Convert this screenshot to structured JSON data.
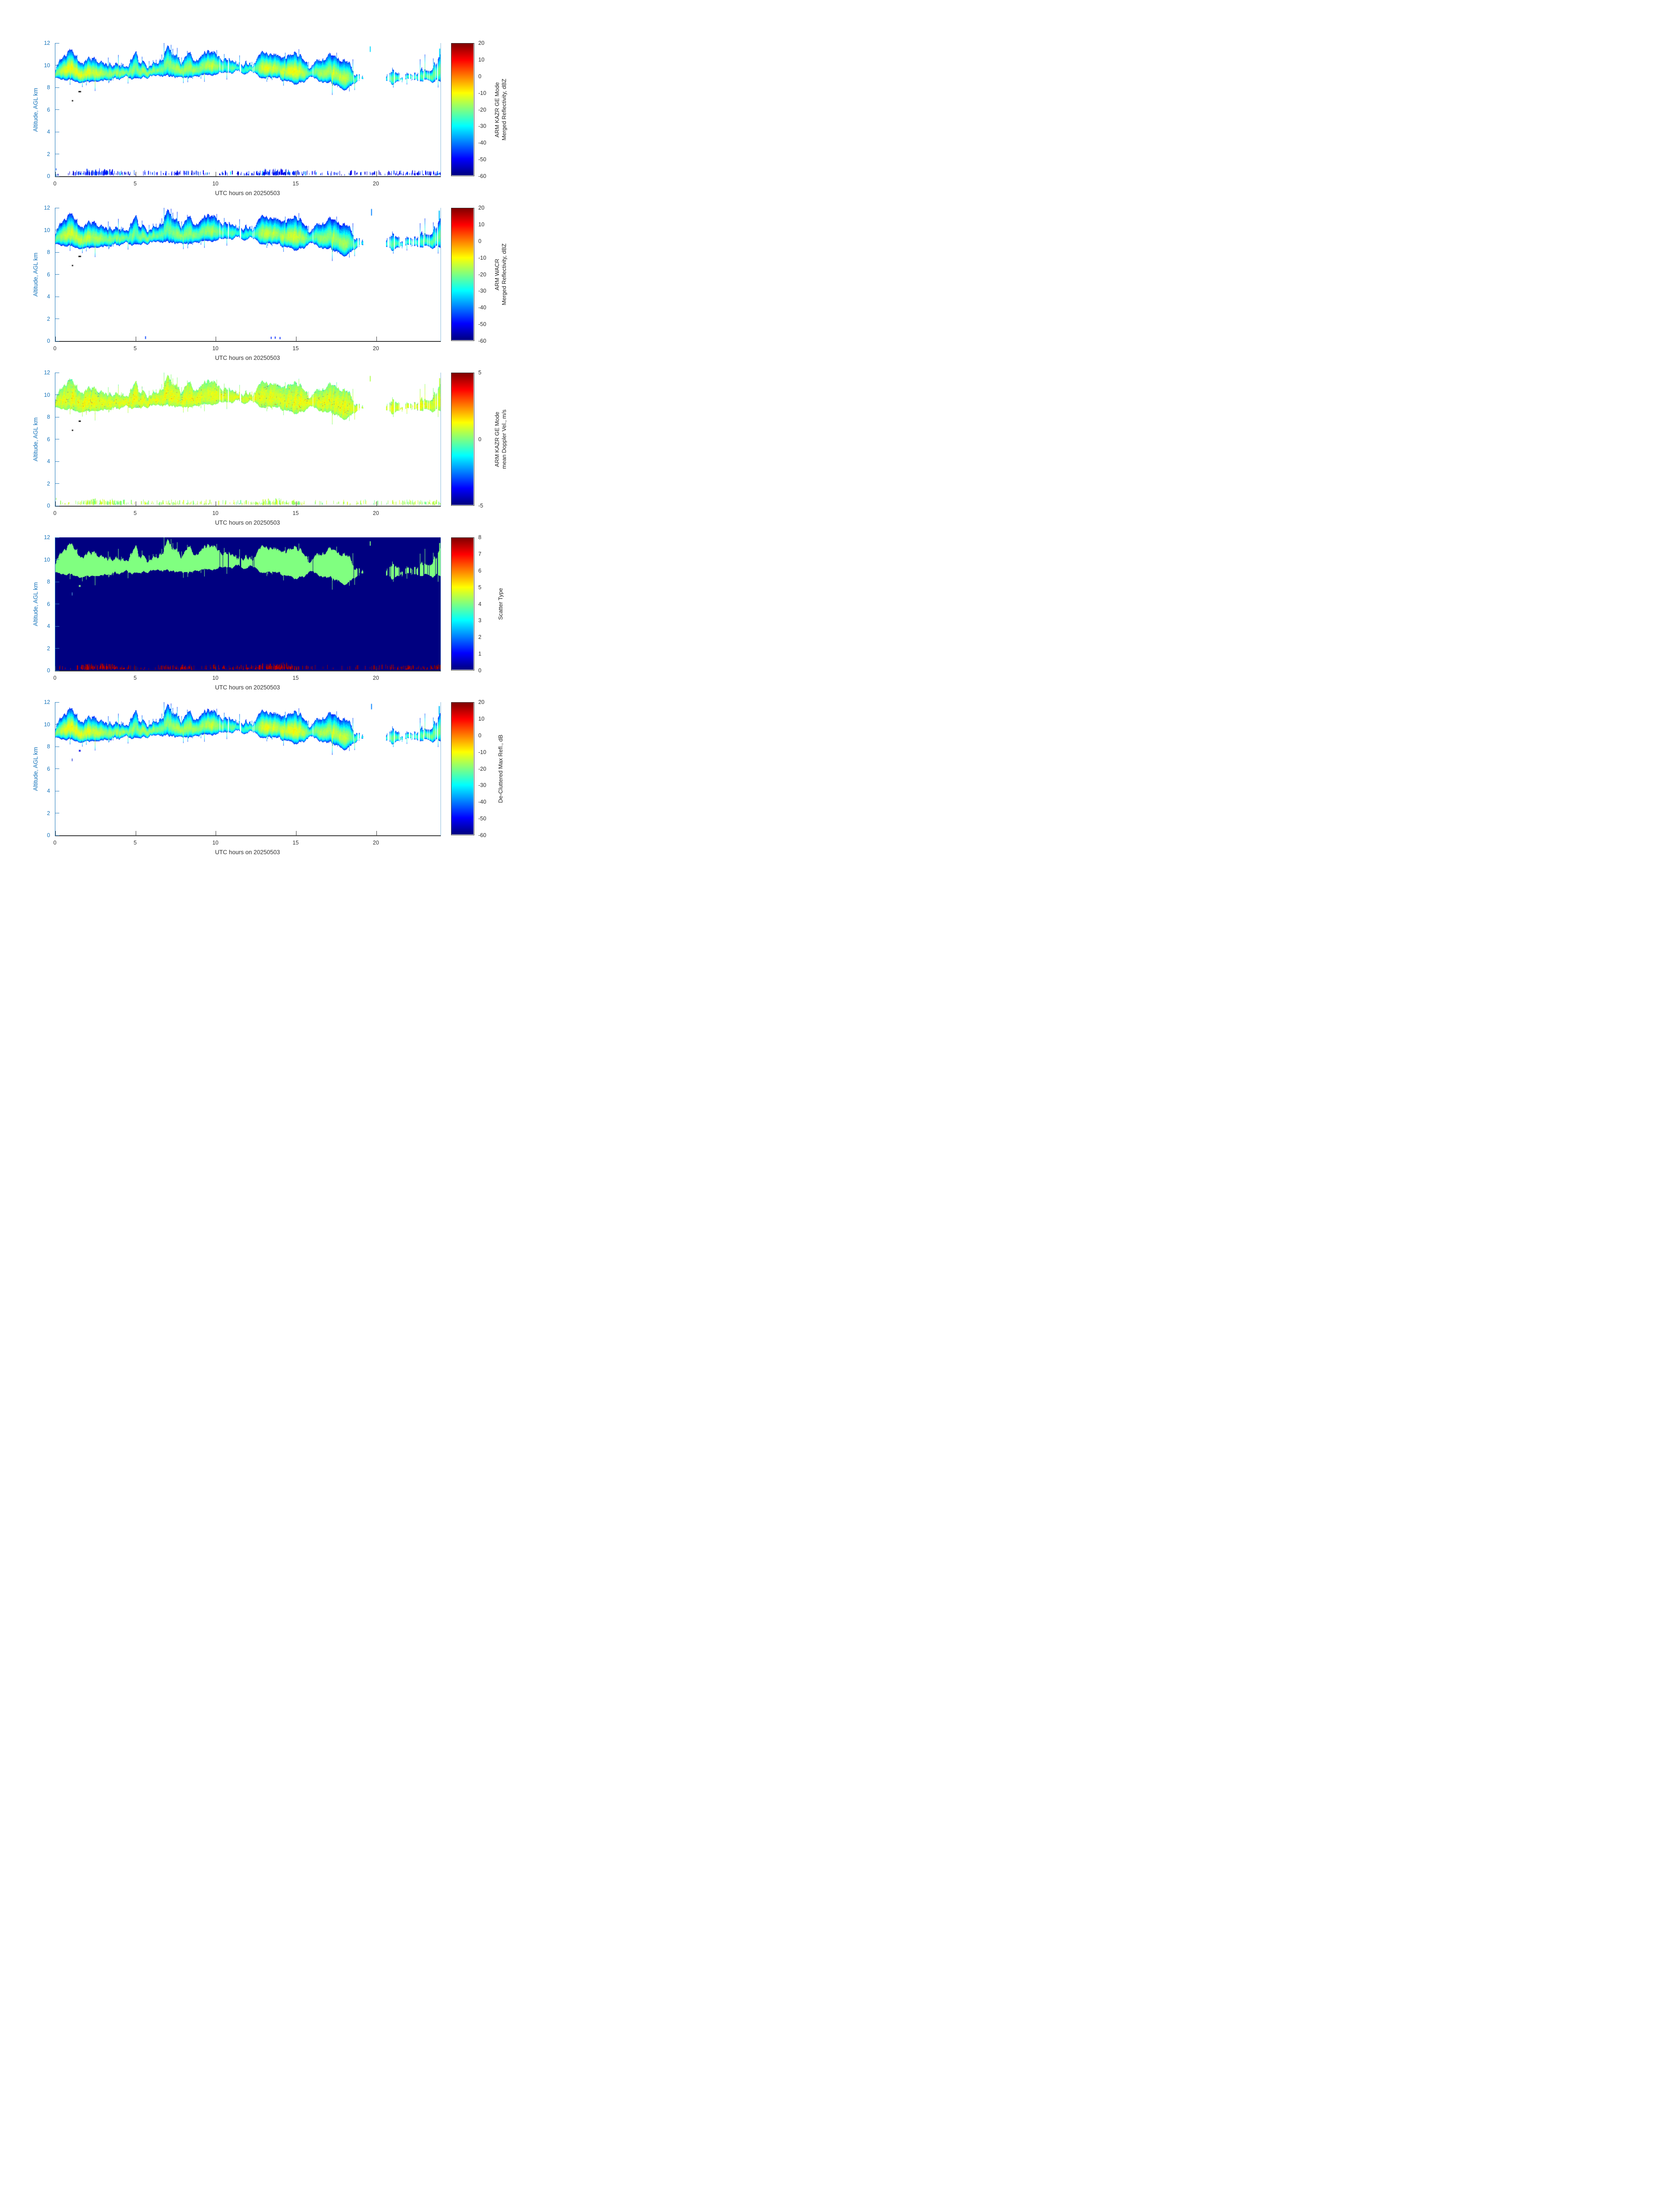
{
  "figure": {
    "xlabel": "UTC hours on 20250503",
    "ylabel": "Altitude, AGL km",
    "axis_color_y": "#1674bb",
    "axis_color_x": "#3a3a3a"
  },
  "chart_data": {
    "type": "heatmap",
    "x": {
      "label": "UTC hours on 20250503",
      "range": [
        0,
        24
      ],
      "ticks": [
        0,
        5,
        10,
        15,
        20
      ]
    },
    "y": {
      "label": "Altitude, AGL km",
      "range": [
        0,
        12
      ],
      "ticks": [
        0,
        2,
        4,
        6,
        8,
        10,
        12
      ]
    },
    "colormap": "jet",
    "cloud_band": {
      "description": "High cloud layer observed by vertically pointing radars; base/top in km AGL vs UTC hour, density ~ reflectivity core strength (0-1). Gaps at 19.3-20.5 and 21.7-21.9 h.",
      "t": [
        0,
        0.3,
        0.6,
        0.9,
        1.2,
        1.5,
        1.8,
        2.1,
        2.4,
        2.7,
        3.0,
        3.3,
        3.6,
        3.9,
        4.2,
        4.5,
        4.8,
        5.0,
        5.2,
        5.5,
        5.8,
        6.1,
        6.4,
        6.7,
        7.0,
        7.2,
        7.5,
        7.8,
        8.1,
        8.4,
        8.7,
        9.0,
        9.3,
        9.6,
        9.9,
        10.2,
        10.5,
        10.8,
        11.1,
        11.4,
        11.7,
        12.0,
        12.3,
        12.6,
        12.9,
        13.2,
        13.5,
        13.8,
        14.1,
        14.4,
        14.7,
        15.0,
        15.3,
        15.6,
        15.9,
        16.2,
        16.5,
        16.8,
        17.1,
        17.4,
        17.7,
        18.0,
        18.3,
        18.6,
        18.9,
        19.1,
        19.3,
        20.5,
        20.8,
        21.1,
        21.4,
        21.7,
        21.9,
        22.2,
        22.5,
        22.8,
        23.1,
        23.4,
        23.7,
        24.0
      ],
      "base_km": [
        8.9,
        8.7,
        8.6,
        8.6,
        8.6,
        8.5,
        8.5,
        8.4,
        8.5,
        8.4,
        8.5,
        8.6,
        8.8,
        8.8,
        8.8,
        8.9,
        8.8,
        8.8,
        8.8,
        8.9,
        8.9,
        9.0,
        8.9,
        8.9,
        9.0,
        9.0,
        9.0,
        9.0,
        9.0,
        9.0,
        9.1,
        9.0,
        9.0,
        9.0,
        9.1,
        9.2,
        9.2,
        9.3,
        9.2,
        9.3,
        9.2,
        9.2,
        9.3,
        9.0,
        8.9,
        8.8,
        8.8,
        8.8,
        8.7,
        8.5,
        8.4,
        8.3,
        8.4,
        8.6,
        8.8,
        8.7,
        8.6,
        8.5,
        8.4,
        8.2,
        8.0,
        7.9,
        8.1,
        8.3,
        8.6,
        8.7,
        8.8,
        8.5,
        8.4,
        8.3,
        8.3,
        8.6,
        8.7,
        8.6,
        8.6,
        8.5,
        8.6,
        8.5,
        8.5,
        8.6
      ],
      "top_km": [
        10.0,
        10.3,
        10.9,
        11.2,
        11.0,
        10.4,
        10.2,
        10.6,
        10.7,
        10.3,
        10.4,
        10.2,
        10.0,
        10.1,
        10.0,
        9.9,
        10.6,
        11.6,
        10.3,
        10.2,
        10.0,
        10.4,
        10.3,
        10.6,
        11.8,
        11.0,
        10.7,
        10.4,
        10.8,
        11.0,
        10.6,
        10.5,
        11.2,
        11.3,
        11.3,
        10.9,
        10.7,
        10.9,
        10.6,
        10.3,
        10.2,
        10.4,
        10.3,
        10.8,
        11.2,
        11.1,
        10.8,
        11.0,
        10.9,
        10.8,
        11.0,
        11.1,
        11.0,
        10.3,
        9.9,
        10.2,
        10.4,
        10.5,
        10.9,
        11.0,
        10.8,
        10.5,
        10.0,
        9.4,
        9.1,
        9.0,
        8.9,
        9.0,
        9.3,
        9.6,
        9.5,
        8.9,
        9.4,
        9.3,
        9.5,
        9.6,
        9.5,
        9.7,
        10.0,
        11.3
      ],
      "density": [
        0.5,
        0.7,
        0.85,
        0.9,
        0.85,
        0.8,
        0.75,
        0.8,
        0.8,
        0.65,
        0.7,
        0.6,
        0.6,
        0.65,
        0.6,
        0.5,
        0.6,
        0.45,
        0.6,
        0.7,
        0.6,
        0.55,
        0.5,
        0.55,
        0.5,
        0.6,
        0.65,
        0.6,
        0.6,
        0.65,
        0.6,
        0.55,
        0.7,
        0.75,
        0.7,
        0.5,
        0.4,
        0.4,
        0.4,
        0.3,
        0.35,
        0.35,
        0.3,
        0.5,
        0.75,
        0.8,
        0.75,
        0.7,
        0.7,
        0.75,
        0.8,
        0.9,
        0.8,
        0.6,
        0.4,
        0.5,
        0.6,
        0.65,
        0.7,
        0.75,
        0.75,
        0.7,
        0.6,
        0.4,
        0.2,
        0.1,
        0,
        0,
        0.35,
        0.45,
        0.4,
        0,
        0.3,
        0.35,
        0.35,
        0.4,
        0.4,
        0.45,
        0.4,
        0.5
      ]
    },
    "surface_clutter": {
      "description": "Near-surface clutter/insect returns, 0.05-0.6 km AGL; relative density vs UTC hour.",
      "alt_range_km": [
        0.05,
        0.6
      ],
      "t": [
        0,
        0.8,
        1.3,
        1.6,
        2.2,
        3.0,
        3.6,
        4.2,
        4.6,
        5.2,
        5.8,
        6.4,
        7.0,
        7.6,
        8.0,
        8.6,
        9.2,
        9.8,
        10.4,
        11.0,
        11.6,
        12.1,
        12.6,
        13.2,
        13.8,
        14.4,
        15.0,
        15.4,
        15.8,
        16.4,
        17.0,
        17.6,
        18.2,
        18.7,
        19.2,
        19.8,
        20.4,
        21.0,
        21.6,
        22.2,
        22.8,
        23.4,
        24.0
      ],
      "density": [
        0.1,
        0.12,
        0.45,
        0.75,
        0.9,
        0.85,
        0.8,
        0.55,
        0.35,
        0.3,
        0.25,
        0.3,
        0.45,
        0.55,
        0.5,
        0.45,
        0.4,
        0.3,
        0.25,
        0.35,
        0.4,
        0.55,
        0.75,
        0.85,
        0.95,
        0.85,
        0.6,
        0.4,
        0.25,
        0.2,
        0.22,
        0.2,
        0.25,
        0.35,
        0.3,
        0.28,
        0.32,
        0.45,
        0.55,
        0.6,
        0.55,
        0.6,
        0.55
      ]
    },
    "panels": [
      {
        "name": "kazr-ge-merged-reflectivity",
        "title_line1": "ARM KAZR GE Mode",
        "title_line2": "Merged Reflectivity, dBZ",
        "kind": "reflectivity",
        "cmin": -60,
        "cmax": 20,
        "cticks": [
          20,
          10,
          0,
          -10,
          -20,
          -30,
          -40,
          -50,
          -60
        ],
        "clutter": true,
        "widen_base": 0,
        "widen_top": 0,
        "seed": 101,
        "dots": [
          {
            "t": 1.07,
            "alt": 6.8,
            "w": 3,
            "h": 3,
            "color": "#101010"
          },
          {
            "t": 1.52,
            "alt": 7.62,
            "w": 6,
            "h": 3,
            "color": "#101010"
          }
        ],
        "marks": [
          {
            "t": 0.05,
            "alt": 0.1,
            "w": 2,
            "h": 0.12,
            "v": -40
          },
          {
            "t": 0.05,
            "alt": 0.62,
            "w": 1.5,
            "h": 0.18,
            "v": -44
          },
          {
            "t": 19.62,
            "alt": 11.45,
            "w": 2,
            "h": 0.5,
            "v": -33
          },
          {
            "t": 23.95,
            "alt": 11.1,
            "w": 2.5,
            "h": 0.8,
            "v": -33
          }
        ]
      },
      {
        "name": "wacr-merged-reflectivity",
        "title_line1": "ARM WACR",
        "title_line2": "Merged Reflectivity, dBZ",
        "kind": "reflectivity",
        "cmin": -60,
        "cmax": 20,
        "cticks": [
          20,
          10,
          0,
          -10,
          -20,
          -30,
          -40,
          -50,
          -60
        ],
        "clutter": false,
        "widen_base": 0.12,
        "widen_top": 0.08,
        "seed": 202,
        "dots": [
          {
            "t": 1.07,
            "alt": 6.8,
            "w": 3,
            "h": 3,
            "color": "#101010"
          },
          {
            "t": 1.52,
            "alt": 7.62,
            "w": 6,
            "h": 3,
            "color": "#101010"
          }
        ],
        "marks": [
          {
            "t": 5.62,
            "alt": 0.3,
            "w": 2,
            "h": 0.25,
            "v": -45
          },
          {
            "t": 13.45,
            "alt": 0.28,
            "w": 2,
            "h": 0.2,
            "v": -47
          },
          {
            "t": 13.7,
            "alt": 0.3,
            "w": 2,
            "h": 0.2,
            "v": -47
          },
          {
            "t": 14.0,
            "alt": 0.26,
            "w": 2,
            "h": 0.2,
            "v": -47
          },
          {
            "t": 19.7,
            "alt": 11.6,
            "w": 2,
            "h": 0.6,
            "v": -40
          },
          {
            "t": 23.92,
            "alt": 11.3,
            "w": 2.5,
            "h": 0.9,
            "v": -35
          }
        ]
      },
      {
        "name": "kazr-ge-mean-doppler-velocity",
        "title_line1": "ARM KAZR GE Mode",
        "title_line2": "mean Doppler Vel., m/s",
        "kind": "velocity",
        "cmin": -5,
        "cmax": 5,
        "cticks": [
          5,
          0,
          -5
        ],
        "clutter": true,
        "widen_base": 0,
        "widen_top": 0,
        "seed": 303,
        "dots": [
          {
            "t": 1.07,
            "alt": 6.8,
            "w": 3,
            "h": 3,
            "color": "#101010"
          },
          {
            "t": 1.52,
            "alt": 7.62,
            "w": 5,
            "h": 3,
            "color": "#101010"
          }
        ],
        "marks": [
          {
            "t": 0.05,
            "alt": 0.62,
            "w": 1.5,
            "h": 0.18,
            "v": 0.3
          },
          {
            "t": 19.62,
            "alt": 11.45,
            "w": 2,
            "h": 0.5,
            "v": 0.5
          },
          {
            "t": 23.95,
            "alt": 11.1,
            "w": 2.5,
            "h": 0.8,
            "v": 0.6
          }
        ]
      },
      {
        "name": "scatter-type",
        "title_line1": "Scatter Type",
        "title_line2": "",
        "kind": "category",
        "cmin": 0,
        "cmax": 8,
        "cticks": [
          8,
          7,
          6,
          5,
          4,
          3,
          2,
          1,
          0
        ],
        "background_value": 0,
        "cloud_value": 4,
        "clutter_value": 8,
        "clutter": true,
        "widen_base": 0.02,
        "widen_top": 0.02,
        "seed": 404,
        "dots": [
          {
            "t": 1.05,
            "alt": 6.9,
            "w": 1.5,
            "h": 7,
            "color": "#4f9ad2"
          },
          {
            "t": 1.52,
            "alt": 7.62,
            "w": 4,
            "h": 4,
            "color": "#8df28d"
          }
        ],
        "marks": [
          {
            "t": 19.62,
            "alt": 11.45,
            "w": 2,
            "h": 0.4,
            "v": 4
          },
          {
            "t": 23.95,
            "alt": 11.15,
            "w": 2.5,
            "h": 0.7,
            "v": 4
          }
        ]
      },
      {
        "name": "decluttered-max-reflectivity",
        "title_line1": "De-Cluttered Max Refl., dB",
        "title_line2": "",
        "kind": "reflectivity",
        "cmin": -60,
        "cmax": 20,
        "cticks": [
          20,
          10,
          0,
          -10,
          -20,
          -30,
          -40,
          -50,
          -60
        ],
        "clutter": false,
        "widen_base": 0.05,
        "widen_top": 0.03,
        "seed": 505,
        "dots": [
          {
            "t": 1.05,
            "alt": 6.8,
            "w": 1.5,
            "h": 6,
            "color": "#1a2bd9"
          },
          {
            "t": 1.52,
            "alt": 7.62,
            "w": 4,
            "h": 4,
            "color": "#1313e8"
          }
        ],
        "marks": [
          {
            "t": 19.7,
            "alt": 11.6,
            "w": 2,
            "h": 0.5,
            "v": -40
          },
          {
            "t": 23.92,
            "alt": 11.25,
            "w": 2.5,
            "h": 0.8,
            "v": -35
          }
        ]
      }
    ]
  }
}
